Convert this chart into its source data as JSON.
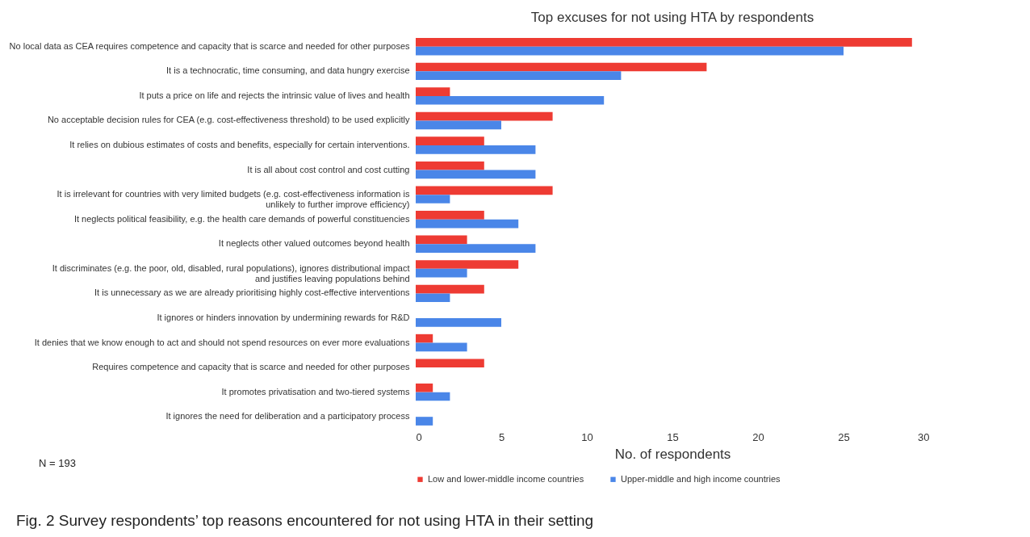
{
  "chart_data": {
    "type": "bar",
    "orientation": "horizontal",
    "title": "Top excuses for not using HTA by respondents",
    "xlabel": "No. of respondents",
    "categories": [
      "No local data as CEA requires competence and capacity that is scarce and needed for other purposes",
      "It is a technocratic, time consuming, and data hungry exercise",
      "It puts a price on life and rejects the intrinsic value of lives and health",
      "No acceptable decision rules for CEA (e.g. cost-effectiveness threshold) to be used explicitly",
      "It relies on dubious estimates of costs and benefits, especially for certain interventions.",
      "It is all about cost control and cost cutting",
      "It is irrelevant for countries with very limited budgets (e.g. cost-effectiveness information is unlikely to further improve efficiency)",
      "It neglects political feasibility, e.g. the health care demands of powerful constituencies",
      "It neglects other valued outcomes beyond health",
      "It discriminates (e.g. the poor, old, disabled, rural populations), ignores distributional impact and justifies leaving populations behind",
      "It is unnecessary as we are already prioritising highly cost-effective interventions",
      "It ignores or hinders innovation by undermining rewards for R&D",
      "It denies that we know enough to act and should not spend resources on ever more evaluations",
      "Requires competence and capacity that is scarce and needed for other purposes",
      "It promotes privatisation and two-tiered systems",
      "It ignores the need for deliberation and a participatory process"
    ],
    "series": [
      {
        "name": "Low and lower-middle income countries",
        "color": "#ee3b33",
        "values": [
          29,
          17,
          2,
          8,
          4,
          4,
          8,
          4,
          3,
          6,
          4,
          0,
          1,
          4,
          1,
          0
        ]
      },
      {
        "name": "Upper-middle and high income countries",
        "color": "#4a86e8",
        "values": [
          25,
          12,
          11,
          5,
          7,
          7,
          2,
          6,
          7,
          3,
          2,
          5,
          3,
          0,
          2,
          1
        ]
      }
    ],
    "xlim": [
      0,
      30
    ],
    "xticks": [
      0,
      5,
      10,
      15,
      20,
      25,
      30
    ],
    "grid": false,
    "legend": "bottom",
    "annotations": [
      "N = 193",
      "Fig. 2  Survey respondents’ top reasons encountered for not using HTA in their setting"
    ]
  }
}
